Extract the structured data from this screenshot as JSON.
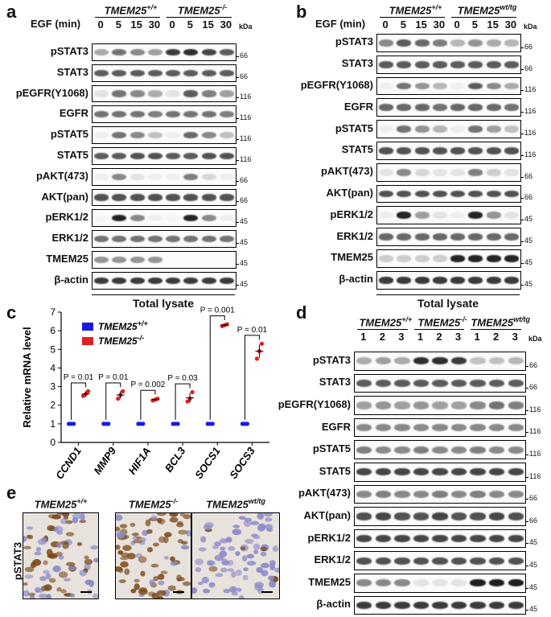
{
  "panels": {
    "a": {
      "letter": "a",
      "header": "EGF (min)",
      "groups": [
        "TMEM25+/+",
        "TMEM25-/-"
      ],
      "group_base": [
        "TMEM25",
        "TMEM25"
      ],
      "group_sup": [
        "+/+",
        "-/-"
      ],
      "lanes": [
        "0",
        "5",
        "15",
        "30",
        "0",
        "5",
        "15",
        "30"
      ],
      "kda_header": "kDa",
      "rows": [
        {
          "label": "pSTAT3",
          "kda": [
            "66"
          ],
          "pattern": [
            0.35,
            0.6,
            0.5,
            0.4,
            0.85,
            0.9,
            0.8,
            0.7
          ]
        },
        {
          "label": "STAT3",
          "kda": [
            "66"
          ],
          "pattern": [
            0.7,
            0.7,
            0.7,
            0.7,
            0.7,
            0.7,
            0.7,
            0.7
          ]
        },
        {
          "label": "pEGFR(Y1068)",
          "kda": [
            "116"
          ],
          "pattern": [
            0.1,
            0.6,
            0.5,
            0.35,
            0.1,
            0.7,
            0.55,
            0.4
          ]
        },
        {
          "label": "EGFR",
          "kda": [
            "116"
          ],
          "pattern": [
            0.6,
            0.6,
            0.6,
            0.55,
            0.6,
            0.6,
            0.6,
            0.55
          ]
        },
        {
          "label": "pSTAT5",
          "kda": [
            "116"
          ],
          "pattern": [
            0.05,
            0.6,
            0.5,
            0.25,
            0.05,
            0.65,
            0.5,
            0.25
          ]
        },
        {
          "label": "STAT5",
          "kda": [
            "116"
          ],
          "pattern": [
            0.7,
            0.7,
            0.75,
            0.75,
            0.7,
            0.7,
            0.75,
            0.75
          ]
        },
        {
          "label": "pAKT(473)",
          "kda": [
            "66"
          ],
          "pattern": [
            0.05,
            0.5,
            0.1,
            0.05,
            0.05,
            0.55,
            0.15,
            0.05
          ]
        },
        {
          "label": "AKT(pan)",
          "kda": [
            "66"
          ],
          "pattern": [
            0.75,
            0.75,
            0.75,
            0.75,
            0.75,
            0.75,
            0.75,
            0.75
          ]
        },
        {
          "label": "pERK1/2",
          "kda": [
            "45"
          ],
          "pattern": [
            0.02,
            0.95,
            0.5,
            0.05,
            0.02,
            0.95,
            0.5,
            0.05
          ]
        },
        {
          "label": "ERK1/2",
          "kda": [
            "45"
          ],
          "pattern": [
            0.6,
            0.6,
            0.6,
            0.6,
            0.6,
            0.6,
            0.6,
            0.6
          ]
        },
        {
          "label": "TMEM25",
          "kda": [
            "45"
          ],
          "pattern": [
            0.45,
            0.45,
            0.45,
            0.45,
            0,
            0,
            0,
            0
          ]
        },
        {
          "label": "β-actin",
          "kda": [
            "45"
          ],
          "pattern": [
            0.85,
            0.85,
            0.85,
            0.85,
            0.85,
            0.85,
            0.85,
            0.85
          ]
        }
      ],
      "footer": "Total lysate"
    },
    "b": {
      "letter": "b",
      "header": "EGF (min)",
      "groups": [
        "TMEM25+/+",
        "TMEM25wt/tg"
      ],
      "group_base": [
        "TMEM25",
        "TMEM25"
      ],
      "group_sup": [
        "+/+",
        "wt/tg"
      ],
      "lanes": [
        "0",
        "5",
        "15",
        "30",
        "0",
        "5",
        "15",
        "30"
      ],
      "kda_header": "kDa",
      "rows": [
        {
          "label": "pSTAT3",
          "kda": [
            "66"
          ],
          "pattern": [
            0.5,
            0.7,
            0.65,
            0.55,
            0.3,
            0.45,
            0.35,
            0.3
          ]
        },
        {
          "label": "STAT3",
          "kda": [
            "66"
          ],
          "pattern": [
            0.7,
            0.7,
            0.7,
            0.7,
            0.7,
            0.7,
            0.7,
            0.7
          ]
        },
        {
          "label": "pEGFR(Y1068)",
          "kda": [
            "116"
          ],
          "pattern": [
            0.05,
            0.6,
            0.45,
            0.3,
            0.05,
            0.7,
            0.5,
            0.35
          ]
        },
        {
          "label": "EGFR",
          "kda": [
            "116"
          ],
          "pattern": [
            0.65,
            0.65,
            0.65,
            0.6,
            0.65,
            0.65,
            0.65,
            0.6
          ]
        },
        {
          "label": "pSTAT5",
          "kda": [
            "116"
          ],
          "pattern": [
            0.05,
            0.6,
            0.45,
            0.3,
            0.05,
            0.6,
            0.4,
            0.25
          ]
        },
        {
          "label": "STAT5",
          "kda": [
            "116"
          ],
          "pattern": [
            0.75,
            0.75,
            0.75,
            0.75,
            0.75,
            0.75,
            0.75,
            0.75
          ]
        },
        {
          "label": "pAKT(473)",
          "kda": [
            "66"
          ],
          "pattern": [
            0.1,
            0.5,
            0.15,
            0.1,
            0.1,
            0.55,
            0.2,
            0.1
          ]
        },
        {
          "label": "AKT(pan)",
          "kda": [
            "66"
          ],
          "pattern": [
            0.75,
            0.75,
            0.75,
            0.75,
            0.75,
            0.75,
            0.75,
            0.75
          ]
        },
        {
          "label": "pERK1/2",
          "kda": [
            "45"
          ],
          "pattern": [
            0.05,
            0.95,
            0.4,
            0.1,
            0.05,
            0.95,
            0.45,
            0.1
          ]
        },
        {
          "label": "ERK1/2",
          "kda": [
            "45"
          ],
          "pattern": [
            0.65,
            0.65,
            0.65,
            0.65,
            0.65,
            0.65,
            0.65,
            0.65
          ]
        },
        {
          "label": "TMEM25",
          "kda": [
            "45"
          ],
          "pattern": [
            0.2,
            0.2,
            0.2,
            0.2,
            0.95,
            0.95,
            0.95,
            0.95
          ]
        },
        {
          "label": "β-actin",
          "kda": [
            "45"
          ],
          "pattern": [
            0.85,
            0.85,
            0.85,
            0.85,
            0.85,
            0.85,
            0.85,
            0.85
          ]
        }
      ],
      "footer": "Total lysate"
    },
    "c": {
      "letter": "c",
      "chart_data": {
        "type": "scatter",
        "ylabel": "Relative mRNA level",
        "categories": [
          "CCND1",
          "MMP9",
          "HIF1A",
          "BCL3",
          "SOCS1",
          "SOCS3"
        ],
        "ylim": [
          0,
          7
        ],
        "yticks": [
          0,
          1,
          2,
          3,
          4,
          5,
          6,
          7
        ],
        "series": [
          {
            "name": "TMEM25+/+",
            "name_base": "TMEM25",
            "name_sup": "+/+",
            "color": "#1a1adc",
            "values": [
              1,
              1,
              1,
              1,
              1,
              1
            ]
          },
          {
            "name": "TMEM25-/-",
            "name_base": "TMEM25",
            "name_sup": "-/-",
            "color": "#e02020",
            "values": [
              2.6,
              2.55,
              2.3,
              2.4,
              6.3,
              4.9
            ],
            "points": [
              [
                2.5,
                2.6,
                2.75
              ],
              [
                2.35,
                2.55,
                2.75
              ],
              [
                2.25,
                2.3,
                2.35
              ],
              [
                2.2,
                2.35,
                2.7
              ],
              [
                6.25,
                6.3,
                6.35
              ],
              [
                4.5,
                4.9,
                5.3
              ]
            ],
            "sem": [
              0.15,
              0.2,
              0.05,
              0.25,
              0.05,
              0.35
            ]
          }
        ],
        "annotations": [
          "P = 0.01",
          "P = 0.01",
          "P = 0.002",
          "P = 0.03",
          "P = 0.001",
          "P = 0.01"
        ]
      }
    },
    "d": {
      "letter": "d",
      "groups": [
        "TMEM25+/+",
        "TMEM25-/-",
        "TMEM25wt/tg"
      ],
      "group_base": [
        "TMEM25",
        "TMEM25",
        "TMEM25"
      ],
      "group_sup": [
        "+/+",
        "-/-",
        "wt/tg"
      ],
      "lanes": [
        "1",
        "2",
        "3",
        "1",
        "2",
        "3",
        "1",
        "2",
        "3"
      ],
      "kda_header": "kDa",
      "rows": [
        {
          "label": "pSTAT3",
          "kda": [
            "66"
          ],
          "pattern": [
            0.35,
            0.4,
            0.35,
            0.9,
            0.9,
            0.85,
            0.25,
            0.25,
            0.3
          ]
        },
        {
          "label": "STAT3",
          "kda": [
            "66"
          ],
          "pattern": [
            0.7,
            0.7,
            0.7,
            0.7,
            0.7,
            0.7,
            0.7,
            0.7,
            0.7
          ]
        },
        {
          "label": "pEGFR(Y1068)",
          "kda": [
            "116"
          ],
          "pattern": [
            0.4,
            0.45,
            0.4,
            0.45,
            0.4,
            0.4,
            0.5,
            0.6,
            0.55
          ]
        },
        {
          "label": "EGFR",
          "kda": [
            "116"
          ],
          "pattern": [
            0.5,
            0.5,
            0.5,
            0.5,
            0.5,
            0.5,
            0.5,
            0.5,
            0.5
          ]
        },
        {
          "label": "pSTAT5",
          "kda": [
            "116"
          ],
          "pattern": [
            0.55,
            0.5,
            0.5,
            0.55,
            0.5,
            0.5,
            0.55,
            0.5,
            0.5
          ]
        },
        {
          "label": "STAT5",
          "kda": [
            "116"
          ],
          "pattern": [
            0.8,
            0.8,
            0.8,
            0.8,
            0.8,
            0.8,
            0.8,
            0.8,
            0.8
          ]
        },
        {
          "label": "pAKT(473)",
          "kda": [
            "66"
          ],
          "pattern": [
            0.5,
            0.55,
            0.5,
            0.5,
            0.55,
            0.5,
            0.55,
            0.5,
            0.5
          ]
        },
        {
          "label": "AKT(pan)",
          "kda": [
            "66"
          ],
          "pattern": [
            0.75,
            0.8,
            0.75,
            0.75,
            0.8,
            0.75,
            0.75,
            0.8,
            0.75
          ]
        },
        {
          "label": "pERK1/2",
          "kda": [
            "45"
          ],
          "pattern": [
            0.8,
            0.8,
            0.8,
            0.8,
            0.8,
            0.8,
            0.8,
            0.8,
            0.8
          ]
        },
        {
          "label": "ERK1/2",
          "kda": [
            "45"
          ],
          "pattern": [
            0.75,
            0.75,
            0.75,
            0.75,
            0.75,
            0.75,
            0.75,
            0.75,
            0.75
          ]
        },
        {
          "label": "TMEM25",
          "kda": [
            "45"
          ],
          "pattern": [
            0.5,
            0.5,
            0.5,
            0.1,
            0.1,
            0.1,
            0.98,
            0.98,
            0.98
          ]
        },
        {
          "label": "β-actin",
          "kda": [
            "45"
          ],
          "pattern": [
            0.85,
            0.85,
            0.85,
            0.85,
            0.85,
            0.85,
            0.85,
            0.85,
            0.85
          ]
        }
      ],
      "footer": "Total lysate"
    },
    "e": {
      "letter": "e",
      "ylabel": "pSTAT3",
      "images": [
        {
          "title": "TMEM25+/+",
          "base": "TMEM25",
          "sup": "+/+",
          "stain": 0.45
        },
        {
          "title": "TMEM25-/-",
          "base": "TMEM25",
          "sup": "-/-",
          "stain": 0.85
        },
        {
          "title": "TMEM25wt/tg",
          "base": "TMEM25",
          "sup": "wt/tg",
          "stain": 0.1
        }
      ]
    }
  },
  "colors": {
    "band": "#1a1a1a",
    "nuclei_brown": "#7a4a1a",
    "nuclei_blue": "#8a8ac8",
    "tissue": "#e8e2dc"
  }
}
